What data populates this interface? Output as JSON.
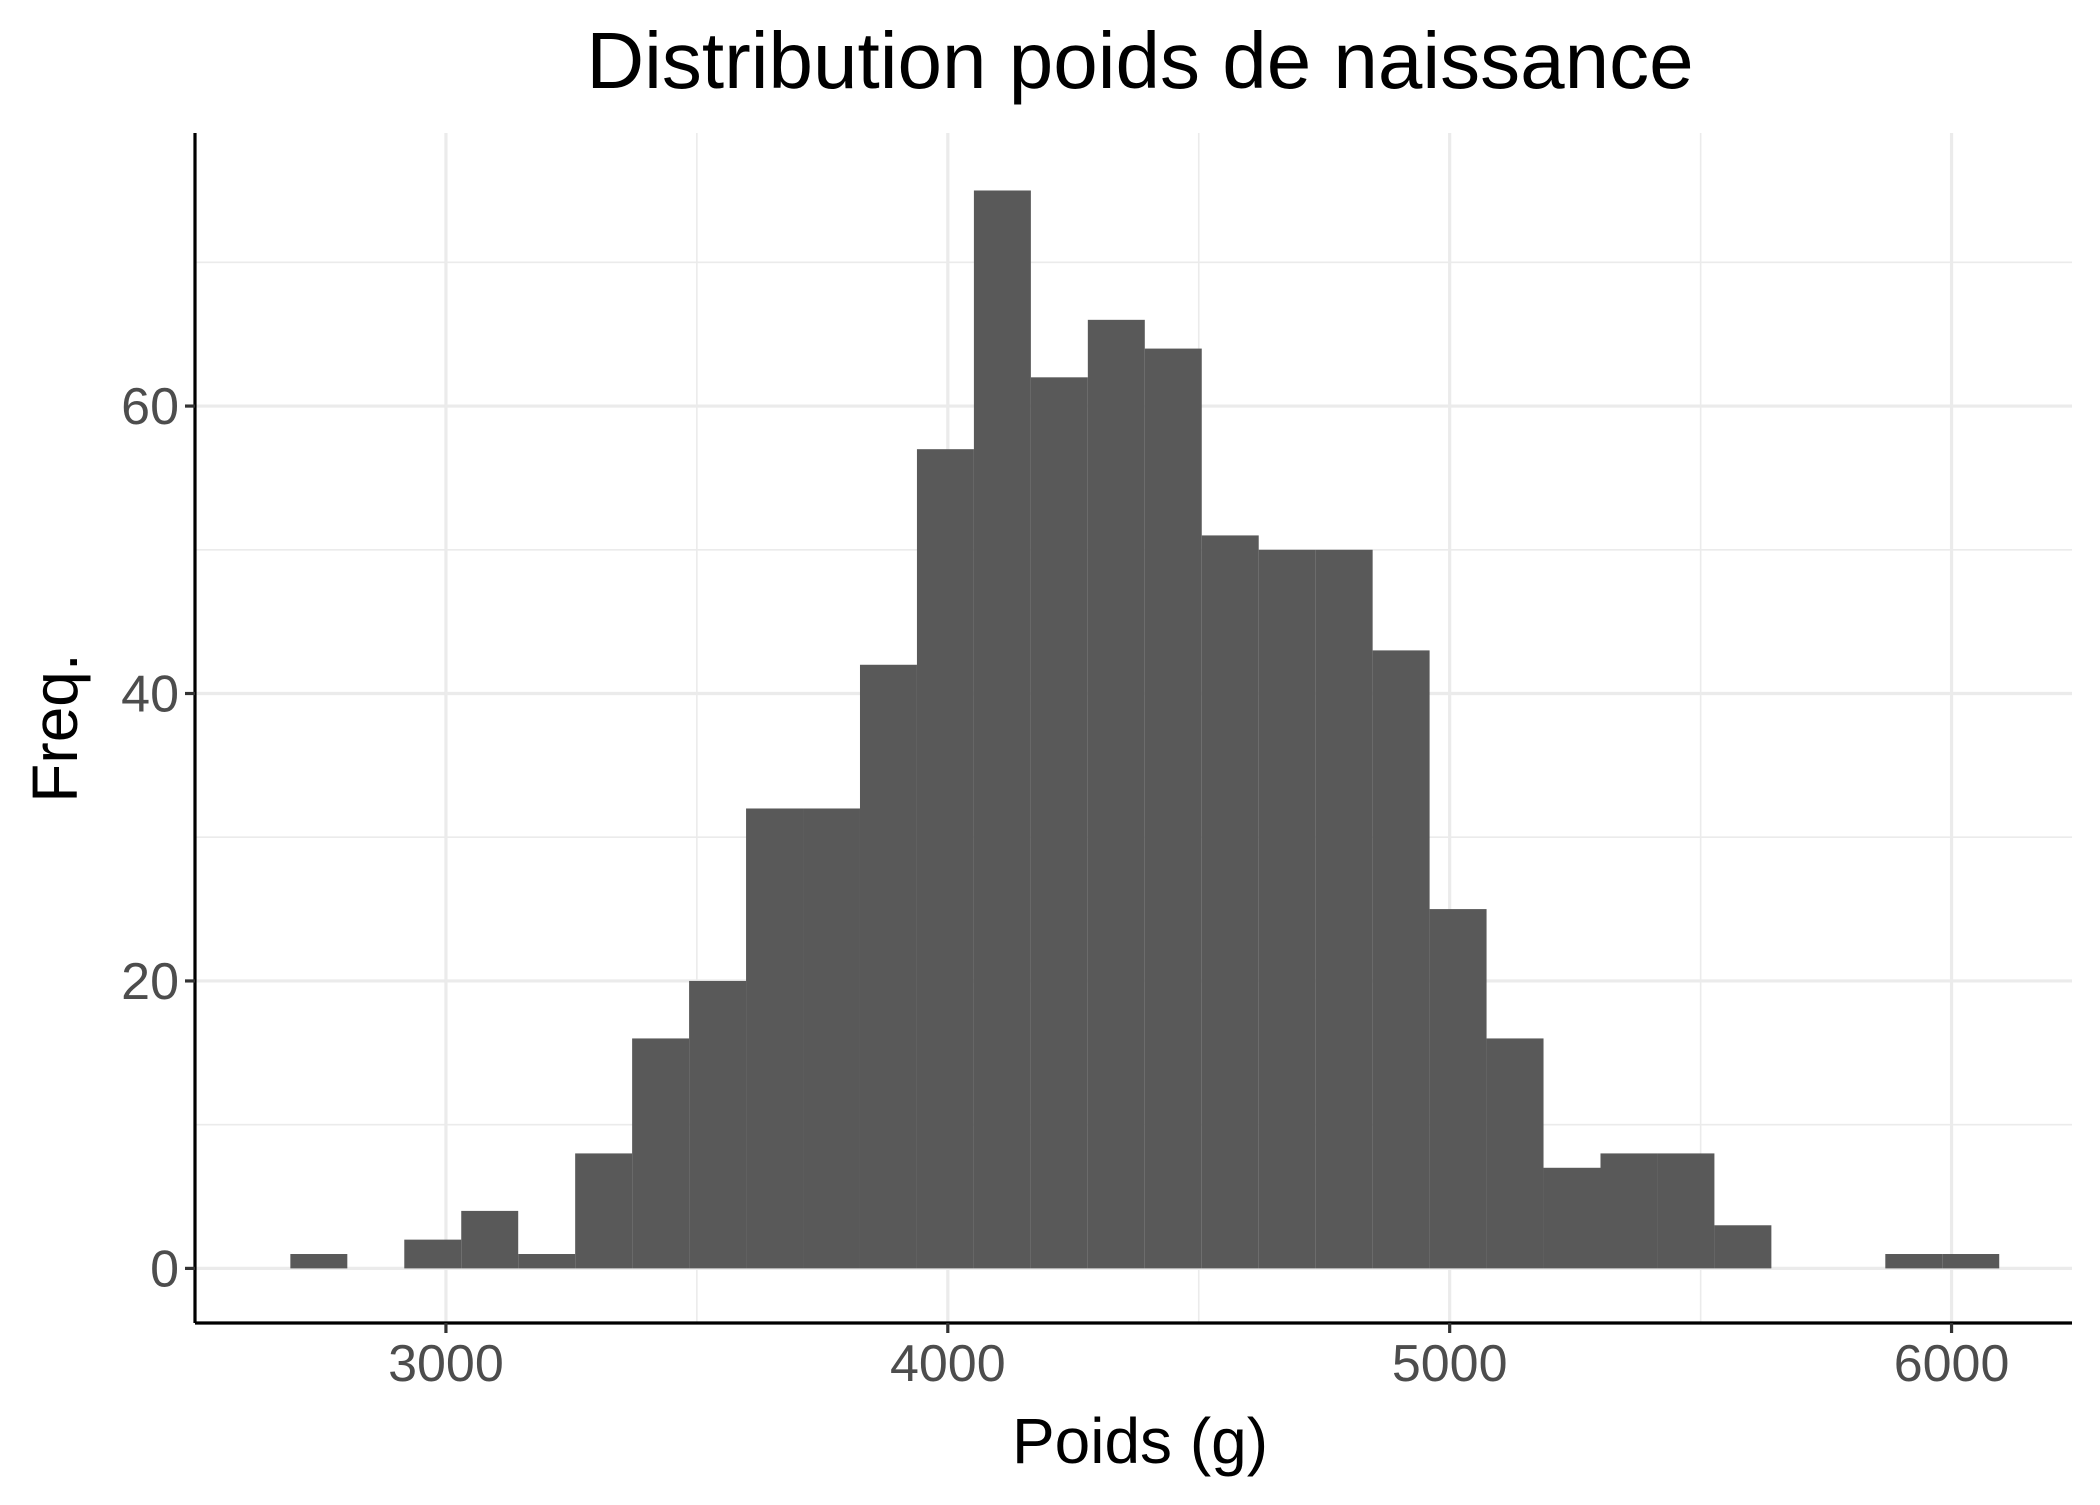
{
  "chart_data": {
    "type": "bar",
    "title": "Distribution poids de naissance",
    "xlabel": "Poids (g)",
    "ylabel": "Freq.",
    "bin_width": 113.5,
    "bins": [
      {
        "start": 2690,
        "end": 2803.5,
        "count": 1
      },
      {
        "start": 2803.5,
        "end": 2917,
        "count": 0
      },
      {
        "start": 2917,
        "end": 3030.5,
        "count": 2
      },
      {
        "start": 3030.5,
        "end": 3144,
        "count": 4
      },
      {
        "start": 3144,
        "end": 3257.5,
        "count": 1
      },
      {
        "start": 3257.5,
        "end": 3371,
        "count": 8
      },
      {
        "start": 3371,
        "end": 3484.5,
        "count": 16
      },
      {
        "start": 3484.5,
        "end": 3598,
        "count": 20
      },
      {
        "start": 3598,
        "end": 3711.5,
        "count": 32
      },
      {
        "start": 3711.5,
        "end": 3825,
        "count": 32
      },
      {
        "start": 3825,
        "end": 3938.5,
        "count": 42
      },
      {
        "start": 3938.5,
        "end": 4052,
        "count": 57
      },
      {
        "start": 4052,
        "end": 4165.5,
        "count": 75
      },
      {
        "start": 4165.5,
        "end": 4279,
        "count": 62
      },
      {
        "start": 4279,
        "end": 4392.5,
        "count": 66
      },
      {
        "start": 4392.5,
        "end": 4506,
        "count": 64
      },
      {
        "start": 4506,
        "end": 4619.5,
        "count": 51
      },
      {
        "start": 4619.5,
        "end": 4733,
        "count": 50
      },
      {
        "start": 4733,
        "end": 4846.5,
        "count": 50
      },
      {
        "start": 4846.5,
        "end": 4960,
        "count": 43
      },
      {
        "start": 4960,
        "end": 5073.5,
        "count": 25
      },
      {
        "start": 5073.5,
        "end": 5187,
        "count": 16
      },
      {
        "start": 5187,
        "end": 5300.5,
        "count": 7
      },
      {
        "start": 5300.5,
        "end": 5414,
        "count": 8
      },
      {
        "start": 5414,
        "end": 5527.5,
        "count": 8
      },
      {
        "start": 5527.5,
        "end": 5641,
        "count": 3
      },
      {
        "start": 5641,
        "end": 5754.5,
        "count": 0
      },
      {
        "start": 5754.5,
        "end": 5868,
        "count": 0
      },
      {
        "start": 5868,
        "end": 5981.5,
        "count": 1
      },
      {
        "start": 5981.5,
        "end": 6095,
        "count": 1
      }
    ],
    "xlim": [
      2500,
      6240
    ],
    "ylim": [
      -3.8,
      79
    ],
    "x_ticks": [
      3000,
      4000,
      5000,
      6000
    ],
    "x_tick_labels": [
      "3000",
      "4000",
      "5000",
      "6000"
    ],
    "x_minor_ticks": [
      3500,
      4500,
      5500
    ],
    "y_ticks": [
      0,
      20,
      40,
      60
    ],
    "y_tick_labels": [
      "0",
      "20",
      "40",
      "60"
    ],
    "y_minor_ticks": [
      10,
      30,
      50,
      70
    ],
    "grid": true,
    "legend": "none",
    "colors": {
      "bar": "#595959",
      "grid": "#ebebeb",
      "axis": "#000000",
      "tick_label": "#4d4d4d",
      "background": "#ffffff"
    }
  }
}
